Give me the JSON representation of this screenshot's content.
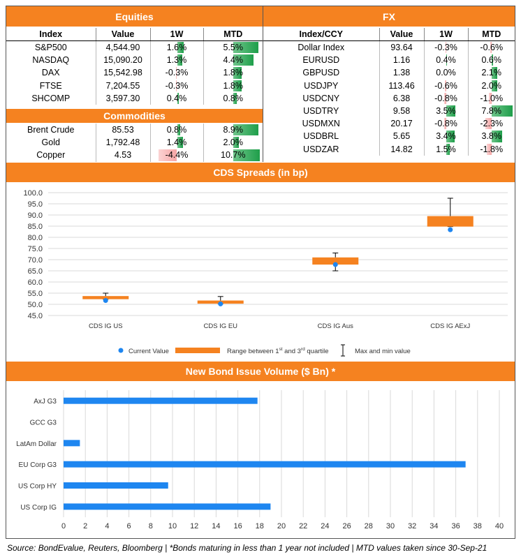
{
  "equities": {
    "title": "Equities",
    "headers": [
      "Index",
      "Value",
      "1W",
      "MTD"
    ],
    "rows": [
      {
        "name": "S&P500",
        "value": "4,544.90",
        "w1": "1.6%",
        "mtd": "5.5%"
      },
      {
        "name": "NASDAQ",
        "value": "15,090.20",
        "w1": "1.3%",
        "mtd": "4.4%"
      },
      {
        "name": "DAX",
        "value": "15,542.98",
        "w1": "-0.3%",
        "mtd": "1.8%"
      },
      {
        "name": "FTSE",
        "value": "7,204.55",
        "w1": "-0.3%",
        "mtd": "1.8%"
      },
      {
        "name": "SHCOMP",
        "value": "3,597.30",
        "w1": "0.4%",
        "mtd": "0.8%"
      }
    ]
  },
  "commodities": {
    "title": "Commodities",
    "rows": [
      {
        "name": "Brent Crude",
        "value": "85.53",
        "w1": "0.8%",
        "mtd": "8.9%"
      },
      {
        "name": "Gold",
        "value": "1,792.48",
        "w1": "1.4%",
        "mtd": "2.0%"
      },
      {
        "name": "Copper",
        "value": "4.53",
        "w1": "-4.4%",
        "mtd": "10.7%"
      }
    ]
  },
  "fx": {
    "title": "FX",
    "headers": [
      "Index/CCY",
      "Value",
      "1W",
      "MTD"
    ],
    "rows": [
      {
        "name": "Dollar Index",
        "value": "93.64",
        "w1": "-0.3%",
        "mtd": "-0.6%"
      },
      {
        "name": "EURUSD",
        "value": "1.16",
        "w1": "0.4%",
        "mtd": "0.6%"
      },
      {
        "name": "GBPUSD",
        "value": "1.38",
        "w1": "0.0%",
        "mtd": "2.1%"
      },
      {
        "name": "USDJPY",
        "value": "113.46",
        "w1": "-0.6%",
        "mtd": "2.0%"
      },
      {
        "name": "USDCNY",
        "value": "6.38",
        "w1": "-0.8%",
        "mtd": "-1.0%"
      },
      {
        "name": "USDTRY",
        "value": "9.58",
        "w1": "3.5%",
        "mtd": "7.8%"
      },
      {
        "name": "USDMXN",
        "value": "20.17",
        "w1": "-0.8%",
        "mtd": "-2.3%"
      },
      {
        "name": "USDBRL",
        "value": "5.65",
        "w1": "3.4%",
        "mtd": "3.8%"
      },
      {
        "name": "USDZAR",
        "value": "14.82",
        "w1": "1.5%",
        "mtd": "-1.8%"
      }
    ]
  },
  "colors": {
    "accent": "#f58220",
    "positive": "#1e9e4a",
    "negative": "#f6a6a6",
    "bar": "#1e86f0",
    "dot": "#1e86f0"
  },
  "chart_data": [
    {
      "type": "box",
      "title": "CDS Spreads (in bp)",
      "categories": [
        "CDS IG US",
        "CDS IG EU",
        "CDS IG Aus",
        "CDS IG AExJ"
      ],
      "current": [
        51.7,
        50.2,
        67.8,
        83.4
      ],
      "q1": [
        52.3,
        50.3,
        67.8,
        84.8
      ],
      "q3": [
        53.7,
        51.7,
        71.0,
        89.5
      ],
      "min": [
        52.3,
        50.3,
        65.0,
        84.8
      ],
      "max": [
        55.0,
        53.5,
        73.0,
        97.5
      ],
      "ylim": [
        45,
        100
      ],
      "yticks": [
        "45.0",
        "50.0",
        "55.0",
        "60.0",
        "65.0",
        "70.0",
        "75.0",
        "80.0",
        "85.0",
        "90.0",
        "95.0",
        "100.0"
      ],
      "legend": {
        "current": "Current Value",
        "range_pre": "Range between 1",
        "range_sup1": "st",
        "range_mid": " and 3",
        "range_sup2": "rd",
        "range_post": " quartile",
        "minmax": "Max and min value"
      },
      "grid": true
    },
    {
      "type": "bar",
      "orientation": "horizontal",
      "title": "New Bond Issue Volume ($ Bn) *",
      "categories": [
        "AxJ G3",
        "GCC G3",
        "LatAm Dollar",
        "EU Corp G3",
        "US Corp HY",
        "US Corp IG"
      ],
      "values": [
        17.8,
        0,
        1.5,
        36.9,
        9.6,
        19.0
      ],
      "xlim": [
        0,
        40
      ],
      "xticks": [
        "0",
        "2",
        "4",
        "6",
        "8",
        "10",
        "12",
        "14",
        "16",
        "18",
        "20",
        "22",
        "24",
        "26",
        "28",
        "30",
        "32",
        "34",
        "36",
        "38",
        "40"
      ],
      "grid": true
    }
  ],
  "footer": "Source: BondEvalue, Reuters, Bloomberg | *Bonds maturing in less than 1 year not included | MTD values taken since 30-Sep-21"
}
